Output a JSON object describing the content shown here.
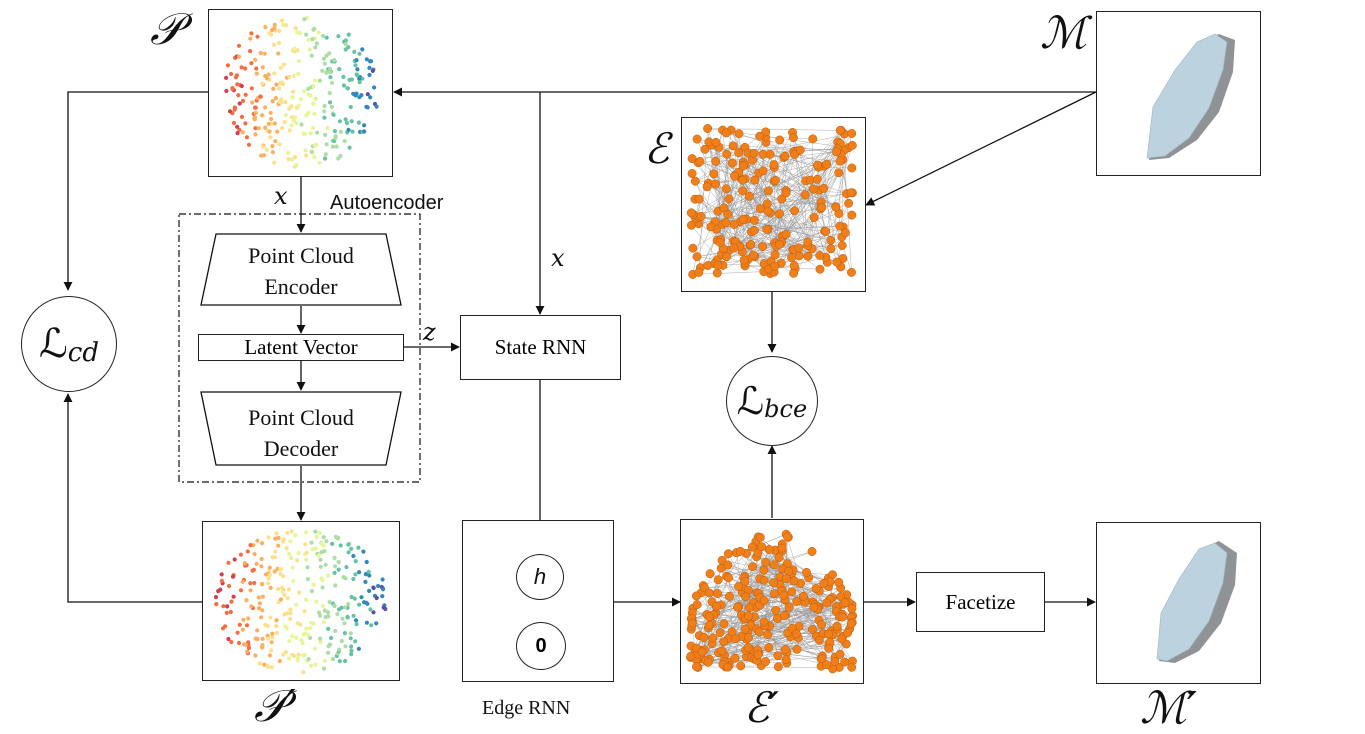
{
  "symbols": {
    "P": "𝒫",
    "P_prime": "𝒫′",
    "M": "ℳ",
    "M_prime": "ℳ′",
    "E": "ℰ",
    "E_prime": "ℰ′",
    "L_cd_main": "ℒ",
    "L_cd_sub": "cd",
    "L_bce_main": "ℒ",
    "L_bce_sub": "bce"
  },
  "labels": {
    "x_top": "x",
    "x_mid": "x",
    "z": "z",
    "autoencoder": "Autoencoder",
    "encoder_line1": "Point Cloud",
    "encoder_line2": "Encoder",
    "latent_vector": "Latent Vector",
    "decoder_line1": "Point Cloud",
    "decoder_line2": "Decoder",
    "state_rnn": "State RNN",
    "edge_rnn": "Edge RNN",
    "facetize": "Facetize",
    "h": "h",
    "zero": "0"
  },
  "colors": {
    "edge_nodes": "#f07f1a",
    "edge_lines": "#9a9a9a",
    "mesh_fill": "#bcd2de",
    "mesh_shadow": "#8f9396",
    "stroke": "#222222"
  }
}
